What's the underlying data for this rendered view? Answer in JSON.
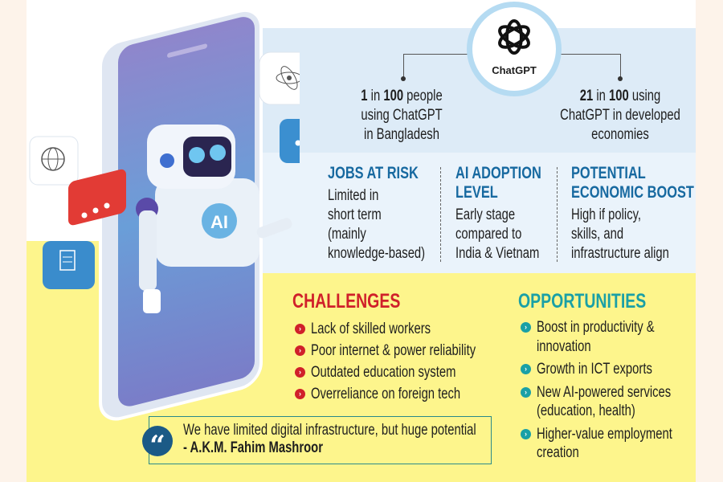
{
  "logo": {
    "label": "ChatGPT"
  },
  "stats": [
    {
      "lines": [
        [
          "1",
          " in ",
          "100",
          " people"
        ],
        "using ChatGPT",
        "in Bangladesh"
      ]
    },
    {
      "lines": [
        [
          "21",
          " in ",
          "100",
          " using"
        ],
        "ChatGPT in developed",
        "economies"
      ]
    }
  ],
  "columns": [
    {
      "title": [
        "JOBS AT RISK"
      ],
      "body": [
        "Limited in",
        "short term",
        "(mainly",
        "knowledge-based)"
      ]
    },
    {
      "title": [
        "AI ADOPTION",
        "LEVEL"
      ],
      "body": [
        "Early stage",
        "compared to",
        "India & Vietnam"
      ]
    },
    {
      "title": [
        "POTENTIAL",
        "ECONOMIC BOOST"
      ],
      "body": [
        "High if policy,",
        "skills, and",
        "infrastructure align"
      ]
    }
  ],
  "challenges": {
    "title": "CHALLENGES",
    "color": "#d0202a",
    "items": [
      "Lack of skilled workers",
      "Poor internet & power reliability",
      "Outdated education system",
      "Overreliance on foreign tech"
    ]
  },
  "opportunities": {
    "title": "OPPORTUNITIES",
    "color": "#1aa0a6",
    "items": [
      [
        "Boost in productivity &",
        "innovation"
      ],
      [
        "Growth in ICT exports"
      ],
      [
        "New AI-powered services",
        "(education, health)"
      ],
      [
        "Higher-value employment",
        "creation"
      ]
    ]
  },
  "quote": {
    "text": "We have limited digital infrastructure, but huge potential",
    "author": "- A.K.M. Fahim Mashroor"
  },
  "illustration": {
    "robot_chest_label": "AI",
    "icons": [
      "atom-icon",
      "globe-icon",
      "chat-dots-icon",
      "document-icon"
    ]
  },
  "colors": {
    "heading_blue": "#1769a0",
    "panel_blue": "#ddebf7",
    "yellow": "#fdf58c",
    "peach": "#fdf3ea"
  }
}
